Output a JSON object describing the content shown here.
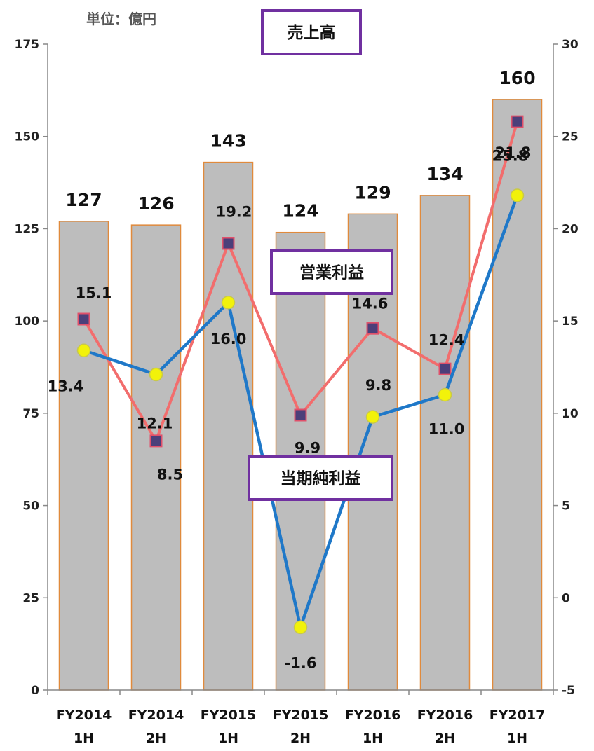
{
  "chart_data": {
    "type": "bar",
    "unit_label": "単位：億円",
    "categories": [
      [
        "FY2014",
        "1H"
      ],
      [
        "FY2014",
        "2H"
      ],
      [
        "FY2015",
        "1H"
      ],
      [
        "FY2015",
        "2H"
      ],
      [
        "FY2016",
        "1H"
      ],
      [
        "FY2016",
        "2H"
      ],
      [
        "FY2017",
        "1H"
      ]
    ],
    "left_axis": {
      "ylim": [
        0,
        175
      ],
      "ticks": [
        "0",
        "25",
        "50",
        "75",
        "100",
        "125",
        "150",
        "175"
      ]
    },
    "right_axis": {
      "ylim": [
        -5,
        30
      ],
      "ticks": [
        "-5",
        "0",
        "5",
        "10",
        "15",
        "20",
        "25",
        "30"
      ]
    },
    "series": [
      {
        "name": "売上高",
        "type": "bar",
        "axis": "left",
        "values": [
          127,
          126,
          143,
          124,
          129,
          134,
          160
        ],
        "labels": [
          "127",
          "126",
          "143",
          "124",
          "129",
          "134",
          "160"
        ],
        "color": "#bdbdbd",
        "edge_color": "#e08a3c"
      },
      {
        "name": "営業利益",
        "type": "line",
        "axis": "right",
        "values": [
          15.1,
          8.5,
          19.2,
          9.9,
          14.6,
          12.4,
          25.8
        ],
        "labels": [
          "15.1",
          "8.5",
          "19.2",
          "9.9",
          "14.6",
          "12.4",
          "25.8"
        ],
        "color": "#f26d6d",
        "marker_color": "#4b3f7a"
      },
      {
        "name": "当期純利益",
        "type": "line",
        "axis": "right",
        "values": [
          13.4,
          12.1,
          16.0,
          -1.6,
          9.8,
          11.0,
          21.8
        ],
        "labels": [
          "13.4",
          "12.1",
          "16.0",
          "-1.6",
          "9.8",
          "11.0",
          "21.8"
        ],
        "color": "#1f78c8",
        "marker_color": "#f2f20a"
      }
    ],
    "label_box_color": "#7030a0",
    "grid": false
  }
}
